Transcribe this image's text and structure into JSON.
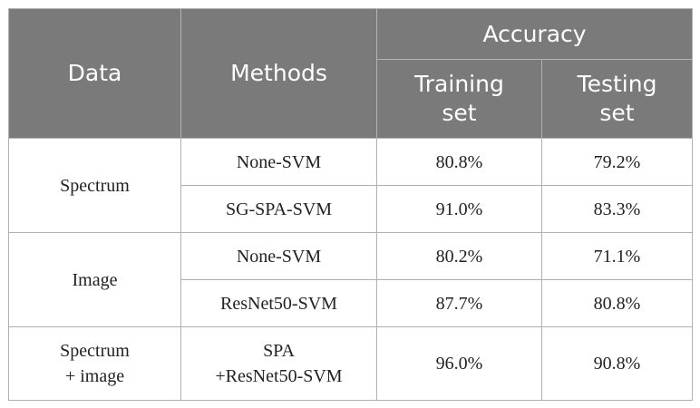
{
  "header": {
    "data": "Data",
    "methods": "Methods",
    "accuracy": "Accuracy",
    "training_line1": "Training",
    "training_line2": "set",
    "testing_line1": "Testing",
    "testing_line2": "set"
  },
  "rows": [
    {
      "data": "Spectrum",
      "methods": [
        {
          "method": "None-SVM",
          "training": "80.8%",
          "testing": "79.2%"
        },
        {
          "method": "SG-SPA-SVM",
          "training": "91.0%",
          "testing": "83.3%"
        }
      ]
    },
    {
      "data": "Image",
      "methods": [
        {
          "method": "None-SVM",
          "training": "80.2%",
          "testing": "71.1%"
        },
        {
          "method": "ResNet50-SVM",
          "training": "87.7%",
          "testing": "80.8%"
        }
      ]
    },
    {
      "data_line1": "Spectrum",
      "data_line2": "+ image",
      "methods": [
        {
          "method_line1": "SPA",
          "method_line2": "+ResNet50-SVM",
          "training": "96.0%",
          "testing": "90.8%"
        }
      ]
    }
  ]
}
